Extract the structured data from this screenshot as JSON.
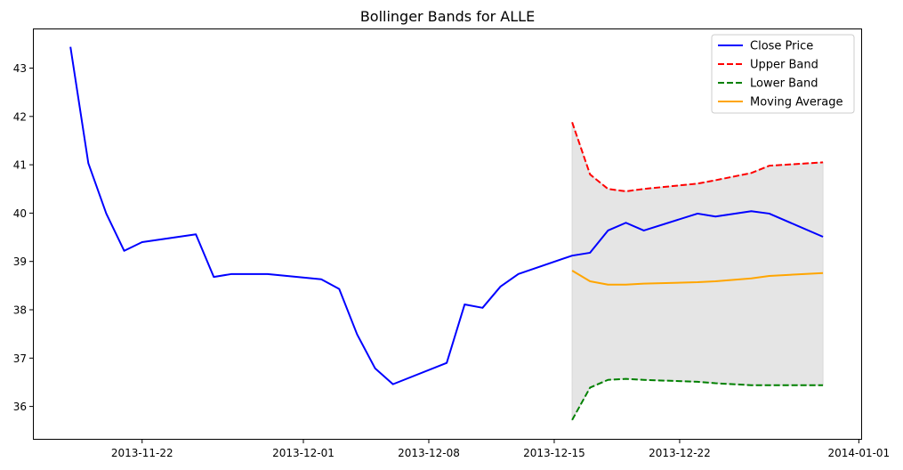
{
  "chart_data": {
    "type": "line",
    "title": "Bollinger Bands for ALLE",
    "xlabel": "",
    "ylabel": "",
    "ylim": [
      35.3,
      43.8
    ],
    "xlim": [
      "2013-11-14",
      "2014-01-01"
    ],
    "grid": false,
    "legend_placement": "top-right",
    "x_ticks": [
      "2013-11-22",
      "2013-12-01",
      "2013-12-08",
      "2013-12-15",
      "2013-12-22",
      "2014-01-01"
    ],
    "y_ticks": [
      36,
      37,
      38,
      39,
      40,
      41,
      42,
      43
    ],
    "band_fill_color": "#e5e5e5",
    "series": [
      {
        "name": "Close Price",
        "color": "#0000ff",
        "dash": false,
        "x": [
          "2013-11-18",
          "2013-11-19",
          "2013-11-20",
          "2013-11-21",
          "2013-11-22",
          "2013-11-25",
          "2013-11-26",
          "2013-11-27",
          "2013-11-29",
          "2013-12-02",
          "2013-12-03",
          "2013-12-04",
          "2013-12-05",
          "2013-12-06",
          "2013-12-09",
          "2013-12-10",
          "2013-12-11",
          "2013-12-12",
          "2013-12-13",
          "2013-12-16",
          "2013-12-17",
          "2013-12-18",
          "2013-12-19",
          "2013-12-20",
          "2013-12-23",
          "2013-12-24",
          "2013-12-26",
          "2013-12-27",
          "2013-12-30"
        ],
        "values": [
          43.44,
          41.03,
          39.99,
          39.22,
          39.4,
          39.56,
          38.68,
          38.74,
          38.74,
          38.63,
          38.43,
          37.49,
          36.79,
          36.46,
          36.9,
          38.11,
          38.04,
          38.48,
          38.74,
          39.12,
          39.18,
          39.64,
          39.8,
          39.64,
          39.99,
          39.93,
          40.04,
          39.99,
          39.51
        ]
      },
      {
        "name": "Upper Band",
        "color": "#ff0000",
        "dash": true,
        "x": [
          "2013-12-16",
          "2013-12-17",
          "2013-12-18",
          "2013-12-19",
          "2013-12-20",
          "2013-12-23",
          "2013-12-24",
          "2013-12-26",
          "2013-12-27",
          "2013-12-30"
        ],
        "values": [
          41.88,
          40.8,
          40.5,
          40.45,
          40.5,
          40.61,
          40.68,
          40.83,
          40.98,
          41.05
        ]
      },
      {
        "name": "Lower Band",
        "color": "#008000",
        "dash": true,
        "x": [
          "2013-12-16",
          "2013-12-17",
          "2013-12-18",
          "2013-12-19",
          "2013-12-20",
          "2013-12-23",
          "2013-12-24",
          "2013-12-26",
          "2013-12-27",
          "2013-12-30"
        ],
        "values": [
          35.72,
          36.39,
          36.55,
          36.57,
          36.55,
          36.51,
          36.48,
          36.44,
          36.44,
          36.44
        ]
      },
      {
        "name": "Moving Average",
        "color": "#ffa500",
        "dash": false,
        "x": [
          "2013-12-16",
          "2013-12-17",
          "2013-12-18",
          "2013-12-19",
          "2013-12-20",
          "2013-12-23",
          "2013-12-24",
          "2013-12-26",
          "2013-12-27",
          "2013-12-30"
        ],
        "values": [
          38.81,
          38.59,
          38.52,
          38.52,
          38.54,
          38.57,
          38.59,
          38.65,
          38.7,
          38.76
        ]
      }
    ]
  }
}
